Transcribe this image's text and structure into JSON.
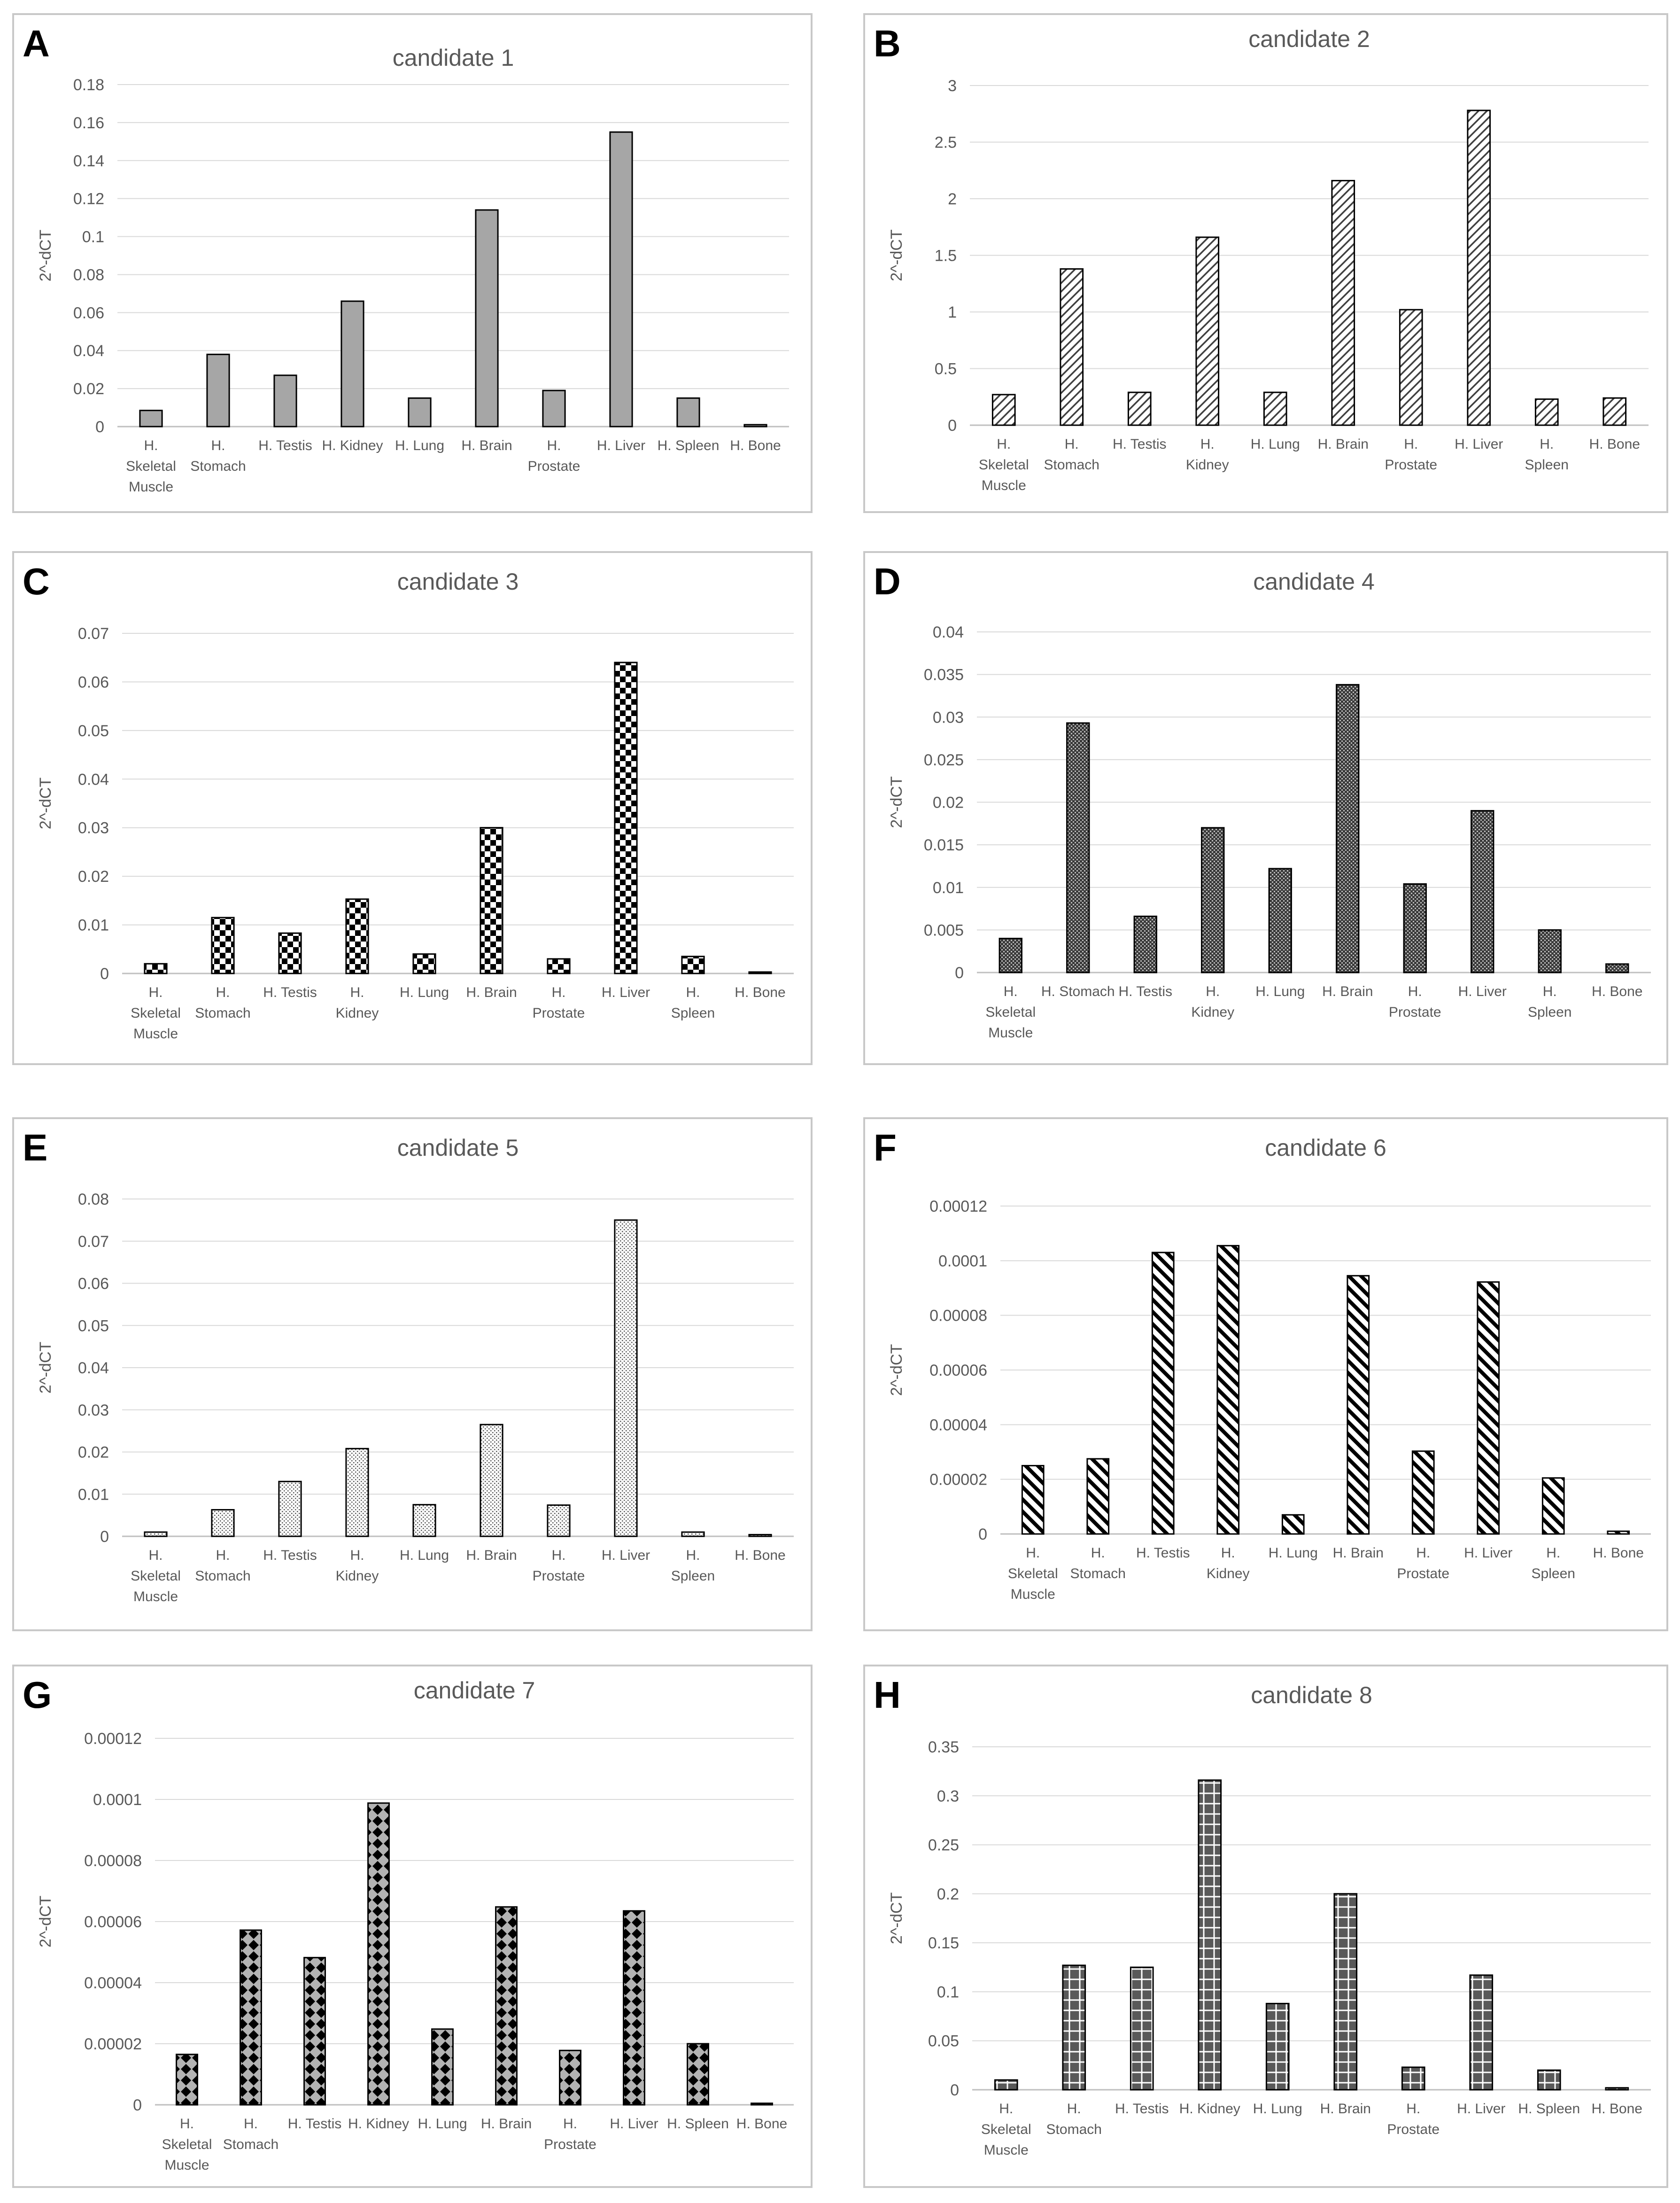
{
  "y_axis_label": "2^-dCT",
  "chart_data": [
    {
      "panel": "A",
      "title": "candidate 1",
      "type": "bar",
      "pattern": "solid-gray",
      "ylabel": "2^-dCT",
      "ylim": [
        0,
        0.18
      ],
      "yticks": [
        0,
        0.02,
        0.04,
        0.06,
        0.08,
        0.1,
        0.12,
        0.14,
        0.16,
        0.18
      ],
      "ytick_labels": [
        "0",
        "0.02",
        "0.04",
        "0.06",
        "0.08",
        "0.1",
        "0.12",
        "0.14",
        "0.16",
        "0.18"
      ],
      "categories": [
        [
          "H.",
          "Skeletal",
          "Muscle"
        ],
        [
          "H.",
          "Stomach"
        ],
        [
          "H. Testis"
        ],
        [
          "H. Kidney"
        ],
        [
          "H. Lung"
        ],
        [
          "H. Brain"
        ],
        [
          "H.",
          "Prostate"
        ],
        [
          "H. Liver"
        ],
        [
          "H. Spleen"
        ],
        [
          "H. Bone"
        ]
      ],
      "values": [
        0.0085,
        0.038,
        0.027,
        0.066,
        0.015,
        0.114,
        0.019,
        0.155,
        0.015,
        0.001
      ]
    },
    {
      "panel": "B",
      "title": "candidate 2",
      "type": "bar",
      "pattern": "diagonal-lines",
      "ylabel": "2^-dCT",
      "ylim": [
        0,
        3
      ],
      "yticks": [
        0,
        0.5,
        1,
        1.5,
        2,
        2.5,
        3
      ],
      "ytick_labels": [
        "0",
        "0.5",
        "1",
        "1.5",
        "2",
        "2.5",
        "3"
      ],
      "categories": [
        [
          "H.",
          "Skeletal",
          "Muscle"
        ],
        [
          "H.",
          "Stomach"
        ],
        [
          "H. Testis"
        ],
        [
          "H.",
          "Kidney"
        ],
        [
          "H. Lung"
        ],
        [
          "H. Brain"
        ],
        [
          "H.",
          "Prostate"
        ],
        [
          "H. Liver"
        ],
        [
          "H.",
          "Spleen"
        ],
        [
          "H. Bone"
        ]
      ],
      "values": [
        0.27,
        1.38,
        0.29,
        1.66,
        0.29,
        2.16,
        1.02,
        2.78,
        0.23,
        0.24
      ]
    },
    {
      "panel": "C",
      "title": "candidate 3",
      "type": "bar",
      "pattern": "checkerboard",
      "ylabel": "2^-dCT",
      "ylim": [
        0,
        0.07
      ],
      "yticks": [
        0,
        0.01,
        0.02,
        0.03,
        0.04,
        0.05,
        0.06,
        0.07
      ],
      "ytick_labels": [
        "0",
        "0.01",
        "0.02",
        "0.03",
        "0.04",
        "0.05",
        "0.06",
        "0.07"
      ],
      "categories": [
        [
          "H.",
          "Skeletal",
          "Muscle"
        ],
        [
          "H.",
          "Stomach"
        ],
        [
          "H. Testis"
        ],
        [
          "H.",
          "Kidney"
        ],
        [
          "H. Lung"
        ],
        [
          "H. Brain"
        ],
        [
          "H.",
          "Prostate"
        ],
        [
          "H. Liver"
        ],
        [
          "H.",
          "Spleen"
        ],
        [
          "H. Bone"
        ]
      ],
      "values": [
        0.002,
        0.0115,
        0.0083,
        0.0153,
        0.004,
        0.03,
        0.003,
        0.064,
        0.0035,
        0.0003
      ]
    },
    {
      "panel": "D",
      "title": "candidate 4",
      "type": "bar",
      "pattern": "dark-dots",
      "ylabel": "2^-dCT",
      "ylim": [
        0,
        0.04
      ],
      "yticks": [
        0,
        0.005,
        0.01,
        0.015,
        0.02,
        0.025,
        0.03,
        0.035,
        0.04
      ],
      "ytick_labels": [
        "0",
        "0.005",
        "0.01",
        "0.015",
        "0.02",
        "0.025",
        "0.03",
        "0.035",
        "0.04"
      ],
      "categories": [
        [
          "H.",
          "Skeletal",
          "Muscle"
        ],
        [
          "H. Stomach"
        ],
        [
          "H. Testis"
        ],
        [
          "H.",
          "Kidney"
        ],
        [
          "H. Lung"
        ],
        [
          "H. Brain"
        ],
        [
          "H.",
          "Prostate"
        ],
        [
          "H. Liver"
        ],
        [
          "H.",
          "Spleen"
        ],
        [
          "H. Bone"
        ]
      ],
      "values": [
        0.004,
        0.0293,
        0.0066,
        0.017,
        0.0122,
        0.0338,
        0.0104,
        0.019,
        0.005,
        0.001
      ]
    },
    {
      "panel": "E",
      "title": "candidate 5",
      "type": "bar",
      "pattern": "light-dots",
      "ylabel": "2^-dCT",
      "ylim": [
        0,
        0.08
      ],
      "yticks": [
        0,
        0.01,
        0.02,
        0.03,
        0.04,
        0.05,
        0.06,
        0.07,
        0.08
      ],
      "ytick_labels": [
        "0",
        "0.01",
        "0.02",
        "0.03",
        "0.04",
        "0.05",
        "0.06",
        "0.07",
        "0.08"
      ],
      "categories": [
        [
          "H.",
          "Skeletal",
          "Muscle"
        ],
        [
          "H.",
          "Stomach"
        ],
        [
          "H. Testis"
        ],
        [
          "H.",
          "Kidney"
        ],
        [
          "H. Lung"
        ],
        [
          "H. Brain"
        ],
        [
          "H.",
          "Prostate"
        ],
        [
          "H. Liver"
        ],
        [
          "H.",
          "Spleen"
        ],
        [
          "H. Bone"
        ]
      ],
      "values": [
        0.001,
        0.0063,
        0.013,
        0.0208,
        0.0075,
        0.0265,
        0.0074,
        0.075,
        0.001,
        0.0004
      ]
    },
    {
      "panel": "F",
      "title": "candidate 6",
      "type": "bar",
      "pattern": "backslash-lines",
      "ylabel": "2^-dCT",
      "ylim": [
        0,
        0.00012
      ],
      "yticks": [
        0,
        2e-05,
        4e-05,
        6e-05,
        8e-05,
        0.0001,
        0.00012
      ],
      "ytick_labels": [
        "0",
        "0.00002",
        "0.00004",
        "0.00006",
        "0.00008",
        "0.0001",
        "0.00012"
      ],
      "categories": [
        [
          "H.",
          "Skeletal",
          "Muscle"
        ],
        [
          "H.",
          "Stomach"
        ],
        [
          "H. Testis"
        ],
        [
          "H.",
          "Kidney"
        ],
        [
          "H. Lung"
        ],
        [
          "H. Brain"
        ],
        [
          "H.",
          "Prostate"
        ],
        [
          "H. Liver"
        ],
        [
          "H.",
          "Spleen"
        ],
        [
          "H. Bone"
        ]
      ],
      "values": [
        2.5e-05,
        2.75e-05,
        0.000103,
        0.0001055,
        7e-06,
        9.45e-05,
        3.03e-05,
        9.22e-05,
        2.05e-05,
        1e-06
      ]
    },
    {
      "panel": "G",
      "title": "candidate 7",
      "type": "bar",
      "pattern": "diamond",
      "ylabel": "2^-dCT",
      "ylim": [
        0,
        0.00012
      ],
      "yticks": [
        0,
        2e-05,
        4e-05,
        6e-05,
        8e-05,
        0.0001,
        0.00012
      ],
      "ytick_labels": [
        "0",
        "0.00002",
        "0.00004",
        "0.00006",
        "0.00008",
        "0.0001",
        "0.00012"
      ],
      "categories": [
        [
          "H.",
          "Skeletal",
          "Muscle"
        ],
        [
          "H.",
          "Stomach"
        ],
        [
          "H. Testis"
        ],
        [
          "H. Kidney"
        ],
        [
          "H. Lung"
        ],
        [
          "H. Brain"
        ],
        [
          "H.",
          "Prostate"
        ],
        [
          "H. Liver"
        ],
        [
          "H. Spleen"
        ],
        [
          "H. Bone"
        ]
      ],
      "values": [
        1.65e-05,
        5.72e-05,
        4.82e-05,
        9.88e-05,
        2.48e-05,
        6.48e-05,
        1.78e-05,
        6.35e-05,
        2e-05,
        5e-07
      ]
    },
    {
      "panel": "H",
      "title": "candidate 8",
      "type": "bar",
      "pattern": "grid",
      "ylabel": "2^-dCT",
      "ylim": [
        0,
        0.35
      ],
      "yticks": [
        0,
        0.05,
        0.1,
        0.15,
        0.2,
        0.25,
        0.3,
        0.35
      ],
      "ytick_labels": [
        "0",
        "0.05",
        "0.1",
        "0.15",
        "0.2",
        "0.25",
        "0.3",
        "0.35"
      ],
      "categories": [
        [
          "H.",
          "Skeletal",
          "Muscle"
        ],
        [
          "H.",
          "Stomach"
        ],
        [
          "H. Testis"
        ],
        [
          "H. Kidney"
        ],
        [
          "H. Lung"
        ],
        [
          "H. Brain"
        ],
        [
          "H.",
          "Prostate"
        ],
        [
          "H. Liver"
        ],
        [
          "H. Spleen"
        ],
        [
          "H. Bone"
        ]
      ],
      "values": [
        0.01,
        0.127,
        0.125,
        0.316,
        0.088,
        0.2,
        0.023,
        0.117,
        0.02,
        0.002
      ]
    }
  ]
}
